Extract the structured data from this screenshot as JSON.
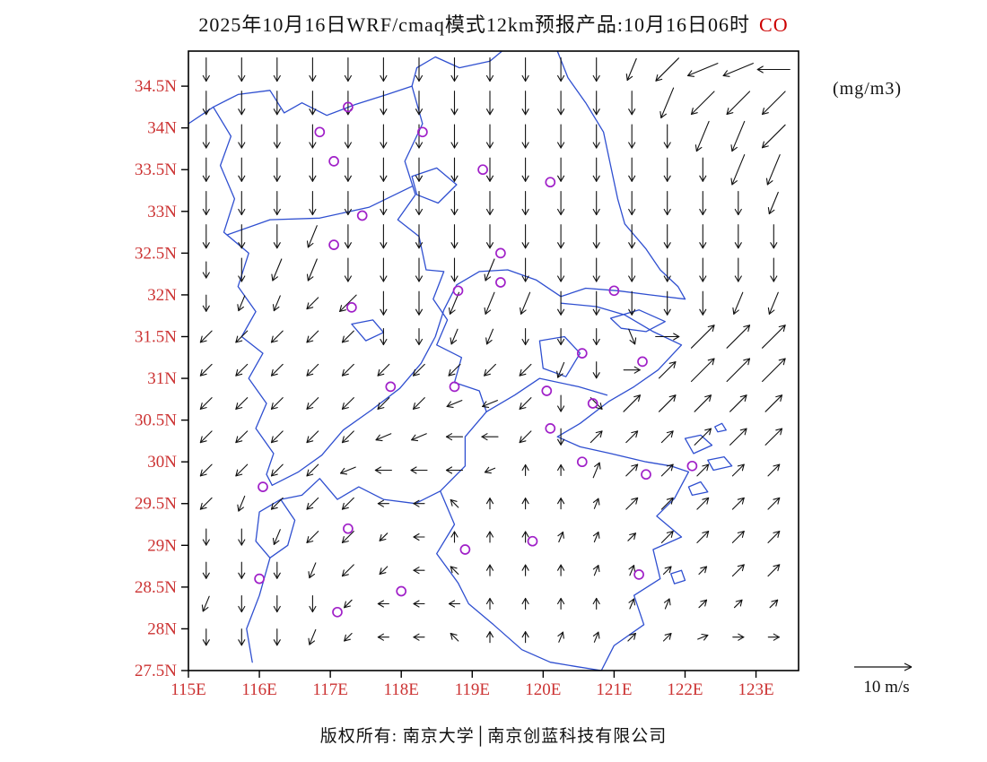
{
  "title": {
    "main": "2025年10月16日WRF/cmaq模式12km预报产品:10月16日06时",
    "species": "CO"
  },
  "unit_label": "(mg/m3)",
  "wind_legend_label": "10 m/s",
  "copyright_text": "版权所有: 南京大学│南京创蓝科技有限公司",
  "colors": {
    "axis_label": "#cc3333",
    "map_line": "#2f4fd0",
    "station": "#a020c8",
    "arrow": "#111111",
    "frame": "#000000",
    "title": "#111111",
    "species": "#cc0000"
  },
  "axes": {
    "lon_min": 115,
    "lon_max": 123.6,
    "lat_min": 27.5,
    "lat_max": 34.92,
    "lat_tick_values": [
      34.5,
      34,
      33.5,
      33,
      32.5,
      32,
      31.5,
      31,
      30.5,
      30,
      29.5,
      29,
      28.5,
      28,
      27.5
    ],
    "lat_tick_labels": [
      "34.5N",
      "34N",
      "33.5N",
      "33N",
      "32.5N",
      "32N",
      "31.5N",
      "31N",
      "30.5N",
      "30N",
      "29.5N",
      "29N",
      "28.5N",
      "28N",
      "27.5N"
    ],
    "lon_tick_values": [
      115,
      116,
      117,
      118,
      119,
      120,
      121,
      122,
      123
    ],
    "lon_tick_labels": [
      "115E",
      "116E",
      "117E",
      "118E",
      "119E",
      "120E",
      "121E",
      "122E",
      "123E"
    ]
  },
  "chart_data": {
    "type": "vector_field_map",
    "title": "2025年10月16日WRF/cmaq模式12km预报产品:10月16日06时 CO",
    "species": "CO",
    "unit": "mg/m3",
    "lon_range": [
      115,
      123.6
    ],
    "lat_range": [
      27.5,
      34.92
    ],
    "wind_scale_reference": {
      "label": "10 m/s",
      "mps": 10
    },
    "wind_grid": {
      "lon_start": 115.25,
      "dlon": 0.5,
      "lat_start": 34.7,
      "dlat": -0.4,
      "dir_angles": {
        "E": 0,
        "ENE": 22.5,
        "NE": 45,
        "NNE": 67.5,
        "N": 90,
        "NNW": 112.5,
        "NW": 135,
        "WNW": 157.5,
        "W": 180,
        "WSW": 202.5,
        "SW": 225,
        "SSW": 247.5,
        "S": 270,
        "SSE": 292.5,
        "SE": 315,
        "ESE": 337.5
      },
      "speed_lengths": {
        "1": 12,
        "2": 18,
        "3": 26,
        "4": 36
      },
      "rows": [
        "S3 S3 S3 S3 S3 S3 S3 S3 S3 S3 S3 S3 SSW3 SW4 WSW4 WSW4 W4",
        "S3 S3 S3 S3 S3 S3 S3 S3 S3 S3 S3 S3 S3 SSW4 SW4 SW4 SW4",
        "S3 S3 S3 S3 S3 S3 S3 S3 S3 S3 S3 S3 S3 S3 SSW4 SSW4 SW4",
        "S3 S3 S3 S3 S3 S3 S3 S3 S3 S3 S3 S3 S3 S3 S3 SSW4 SSW4",
        "S3 S3 S3 S3 S3 S3 S3 S3 S3 S3 S3 S3 S3 S3 S3 S3 SSW3",
        "S3 S3 S3 SSW3 S3 S3 S3 S3 S3 S3 S3 S3 S3 S3 S3 S3 S3",
        "S2 S3 SSW3 SSW3 S3 S3 S3 S3 SSW3 S3 S3 S3 S3 S3 S3 S3 S3",
        "S2 SSW2 SSW2 SW2 SW3 S3 S3 SSW3 SSW3 SSW3 S3 S3 S3 S3 S3 SSW3 SSW3",
        "SW2 SW2 SW2 SW2 SW2 S2 S2 SSW2 SSW2 S2 S2 S2 SSE2 E3 NE4 NE4 NE4",
        "SW2 SW2 SW2 SW2 SW2 SW2 SW2 SW2 SW2 SW2 SSW2 S2 E2 NE3 NE4 NE4 NE4",
        "SW2 SW2 SW2 SW2 SW2 SW2 SW2 WSW2 WSW2 SW2 S2 SE2 NE3 NE3 NE3 NE3 NE3",
        "SW2 SW2 SW2 SW2 SW2 WSW2 WSW2 W2 W2 SW2 S2 NE2 NE2 NE2 NE3 NE3 NE3",
        "SW2 SW2 SW2 SW2 WSW2 W2 W2 W2 WSW1 N1 N1 NNE2 NE2 NE2 NE2 NE2 NE2",
        "SW2 SSW2 SW2 SW2 SW2 W1 W1 NW1 N1 N1 N1 NNE1 NE2 NE2 NE2 NE2 NE2",
        "S2 S2 SSW2 SW2 SW2 SW1 W1 N1 N1 N1 NNE1 NNE1 NE1 NE2 NE2 NE2 NE2",
        "S2 S2 S2 SSW2 SW2 SW1 W1 NW1 N1 N1 N1 NNE1 NNE1 NE1 NE1 NE2 NE2",
        "SSW2 S2 S2 S2 SW1 W1 W1 W1 N1 N1 N1 N1 NNE1 NNE1 NE1 NE1 NE1",
        "S2 S2 S2 SSW2 SW1 W1 W1 NW1 N1 N1 NNE1 NNE1 NE1 NE1 ENE1 E1 E1"
      ]
    },
    "stations_lonlat": [
      [
        117.25,
        34.25
      ],
      [
        116.85,
        33.95
      ],
      [
        117.05,
        33.6
      ],
      [
        118.3,
        33.95
      ],
      [
        119.15,
        33.5
      ],
      [
        120.1,
        33.35
      ],
      [
        117.45,
        32.95
      ],
      [
        117.05,
        32.6
      ],
      [
        119.4,
        32.5
      ],
      [
        118.8,
        32.05
      ],
      [
        119.4,
        32.15
      ],
      [
        121.0,
        32.05
      ],
      [
        117.3,
        31.85
      ],
      [
        120.55,
        31.3
      ],
      [
        121.4,
        31.2
      ],
      [
        117.85,
        30.9
      ],
      [
        118.75,
        30.9
      ],
      [
        120.05,
        30.85
      ],
      [
        120.7,
        30.7
      ],
      [
        120.1,
        30.4
      ],
      [
        120.55,
        30.0
      ],
      [
        121.45,
        29.85
      ],
      [
        122.1,
        29.95
      ],
      [
        116.05,
        29.7
      ],
      [
        117.25,
        29.2
      ],
      [
        118.9,
        28.95
      ],
      [
        119.85,
        29.05
      ],
      [
        116.0,
        28.6
      ],
      [
        118.0,
        28.45
      ],
      [
        121.35,
        28.65
      ],
      [
        117.1,
        28.2
      ]
    ]
  },
  "map_outlines": {
    "polylines": [
      [
        [
          120.2,
          34.92
        ],
        [
          120.35,
          34.6
        ],
        [
          120.6,
          34.3
        ],
        [
          120.85,
          33.95
        ],
        [
          120.95,
          33.55
        ],
        [
          121.05,
          33.15
        ],
        [
          121.15,
          32.85
        ],
        [
          121.45,
          32.55
        ],
        [
          121.65,
          32.3
        ],
        [
          121.9,
          32.1
        ],
        [
          122.0,
          31.95
        ]
      ],
      [
        [
          122.0,
          31.95
        ],
        [
          121.5,
          32.0
        ],
        [
          121.05,
          32.05
        ],
        [
          120.6,
          32.08
        ],
        [
          120.25,
          31.98
        ]
      ],
      [
        [
          120.25,
          31.98
        ],
        [
          119.9,
          32.18
        ],
        [
          119.5,
          32.3
        ],
        [
          119.1,
          32.28
        ],
        [
          118.78,
          32.12
        ],
        [
          118.6,
          31.82
        ],
        [
          118.48,
          31.5
        ],
        [
          118.28,
          31.18
        ],
        [
          117.98,
          30.88
        ],
        [
          117.58,
          30.62
        ],
        [
          117.18,
          30.38
        ],
        [
          116.88,
          30.08
        ],
        [
          116.55,
          29.88
        ],
        [
          116.18,
          29.72
        ]
      ],
      [
        [
          120.25,
          31.9
        ],
        [
          120.75,
          31.86
        ],
        [
          121.15,
          31.76
        ],
        [
          121.55,
          31.56
        ],
        [
          121.95,
          31.4
        ],
        [
          121.62,
          31.1
        ],
        [
          121.28,
          30.9
        ],
        [
          120.92,
          30.72
        ],
        [
          120.52,
          30.46
        ],
        [
          120.2,
          30.3
        ],
        [
          120.52,
          30.18
        ],
        [
          120.95,
          30.1
        ],
        [
          121.45,
          30.0
        ],
        [
          121.8,
          29.95
        ],
        [
          122.05,
          29.88
        ],
        [
          121.85,
          29.56
        ],
        [
          121.6,
          29.35
        ],
        [
          121.95,
          29.1
        ],
        [
          121.55,
          28.95
        ],
        [
          121.65,
          28.6
        ],
        [
          121.28,
          28.4
        ],
        [
          121.42,
          28.05
        ],
        [
          121.0,
          27.8
        ],
        [
          120.82,
          27.5
        ]
      ],
      [
        [
          115.0,
          34.05
        ],
        [
          115.35,
          34.25
        ],
        [
          115.7,
          34.4
        ],
        [
          116.15,
          34.45
        ],
        [
          116.35,
          34.18
        ],
        [
          116.6,
          34.3
        ],
        [
          116.95,
          34.15
        ],
        [
          117.35,
          34.28
        ],
        [
          117.8,
          34.4
        ],
        [
          118.15,
          34.5
        ],
        [
          118.22,
          34.72
        ],
        [
          118.48,
          34.85
        ],
        [
          118.82,
          34.72
        ],
        [
          119.25,
          34.8
        ],
        [
          119.42,
          34.92
        ]
      ],
      [
        [
          115.35,
          34.25
        ],
        [
          115.6,
          33.9
        ],
        [
          115.45,
          33.55
        ],
        [
          115.65,
          33.15
        ],
        [
          115.5,
          32.75
        ],
        [
          115.85,
          32.5
        ],
        [
          115.7,
          32.1
        ],
        [
          115.95,
          31.8
        ],
        [
          115.75,
          31.5
        ]
      ],
      [
        [
          115.75,
          31.5
        ],
        [
          116.05,
          31.3
        ],
        [
          115.85,
          31.0
        ],
        [
          116.1,
          30.7
        ],
        [
          115.95,
          30.4
        ],
        [
          116.2,
          30.1
        ],
        [
          116.1,
          29.85
        ],
        [
          116.18,
          29.72
        ]
      ],
      [
        [
          118.15,
          34.5
        ],
        [
          118.3,
          34.05
        ],
        [
          118.05,
          33.6
        ],
        [
          118.2,
          33.2
        ],
        [
          117.95,
          32.9
        ],
        [
          118.25,
          32.7
        ],
        [
          118.35,
          32.3
        ],
        [
          118.6,
          32.28
        ],
        [
          118.45,
          31.95
        ],
        [
          118.65,
          31.7
        ],
        [
          118.5,
          31.4
        ],
        [
          118.85,
          31.25
        ],
        [
          118.75,
          30.95
        ],
        [
          119.1,
          30.85
        ],
        [
          119.2,
          30.6
        ]
      ],
      [
        [
          119.2,
          30.6
        ],
        [
          119.6,
          30.8
        ],
        [
          119.95,
          31.0
        ],
        [
          120.5,
          30.9
        ],
        [
          120.9,
          30.8
        ]
      ],
      [
        [
          119.2,
          30.6
        ],
        [
          118.9,
          30.3
        ],
        [
          118.9,
          29.95
        ],
        [
          118.55,
          29.65
        ],
        [
          118.2,
          29.5
        ],
        [
          117.75,
          29.55
        ],
        [
          117.4,
          29.7
        ],
        [
          117.1,
          29.55
        ],
        [
          116.85,
          29.8
        ],
        [
          116.6,
          29.6
        ],
        [
          116.3,
          29.55
        ]
      ],
      [
        [
          118.55,
          29.65
        ],
        [
          118.75,
          29.25
        ],
        [
          118.5,
          28.9
        ],
        [
          118.8,
          28.55
        ],
        [
          118.95,
          28.3
        ],
        [
          119.3,
          28.05
        ],
        [
          119.7,
          27.75
        ],
        [
          120.1,
          27.6
        ],
        [
          120.45,
          27.55
        ],
        [
          120.82,
          27.5
        ]
      ],
      [
        [
          116.15,
          28.85
        ],
        [
          116.0,
          28.4
        ],
        [
          115.82,
          28.0
        ],
        [
          115.9,
          27.6
        ]
      ],
      [
        [
          115.55,
          32.72
        ],
        [
          116.15,
          32.9
        ],
        [
          116.85,
          32.92
        ],
        [
          117.55,
          33.05
        ],
        [
          118.15,
          33.3
        ]
      ]
    ],
    "closed_shapes": [
      [
        [
          120.95,
          31.72
        ],
        [
          121.35,
          31.82
        ],
        [
          121.72,
          31.68
        ],
        [
          121.45,
          31.56
        ],
        [
          121.1,
          31.6
        ],
        [
          120.95,
          31.72
        ]
      ],
      [
        [
          122.0,
          30.28
        ],
        [
          122.22,
          30.32
        ],
        [
          122.38,
          30.2
        ],
        [
          122.12,
          30.1
        ],
        [
          122.0,
          30.28
        ]
      ],
      [
        [
          122.32,
          30.02
        ],
        [
          122.55,
          30.06
        ],
        [
          122.66,
          29.95
        ],
        [
          122.4,
          29.9
        ],
        [
          122.32,
          30.02
        ]
      ],
      [
        [
          122.05,
          29.7
        ],
        [
          122.22,
          29.76
        ],
        [
          122.32,
          29.64
        ],
        [
          122.1,
          29.6
        ],
        [
          122.05,
          29.7
        ]
      ],
      [
        [
          121.8,
          28.66
        ],
        [
          121.95,
          28.7
        ],
        [
          122.0,
          28.58
        ],
        [
          121.85,
          28.54
        ],
        [
          121.8,
          28.66
        ]
      ],
      [
        [
          122.42,
          30.42
        ],
        [
          122.52,
          30.46
        ],
        [
          122.58,
          30.38
        ],
        [
          122.46,
          30.36
        ],
        [
          122.42,
          30.42
        ]
      ],
      [
        [
          118.15,
          33.42
        ],
        [
          118.5,
          33.52
        ],
        [
          118.78,
          33.32
        ],
        [
          118.52,
          33.1
        ],
        [
          118.22,
          33.2
        ],
        [
          118.15,
          33.42
        ]
      ],
      [
        [
          119.95,
          31.45
        ],
        [
          120.3,
          31.5
        ],
        [
          120.52,
          31.3
        ],
        [
          120.32,
          31.02
        ],
        [
          120.0,
          31.12
        ],
        [
          119.95,
          31.45
        ]
      ],
      [
        [
          117.3,
          31.65
        ],
        [
          117.6,
          31.7
        ],
        [
          117.75,
          31.55
        ],
        [
          117.5,
          31.45
        ],
        [
          117.3,
          31.65
        ]
      ],
      [
        [
          116.0,
          29.4
        ],
        [
          116.3,
          29.55
        ],
        [
          116.5,
          29.3
        ],
        [
          116.4,
          29.0
        ],
        [
          116.15,
          28.85
        ],
        [
          115.95,
          29.05
        ],
        [
          116.0,
          29.4
        ]
      ]
    ]
  }
}
